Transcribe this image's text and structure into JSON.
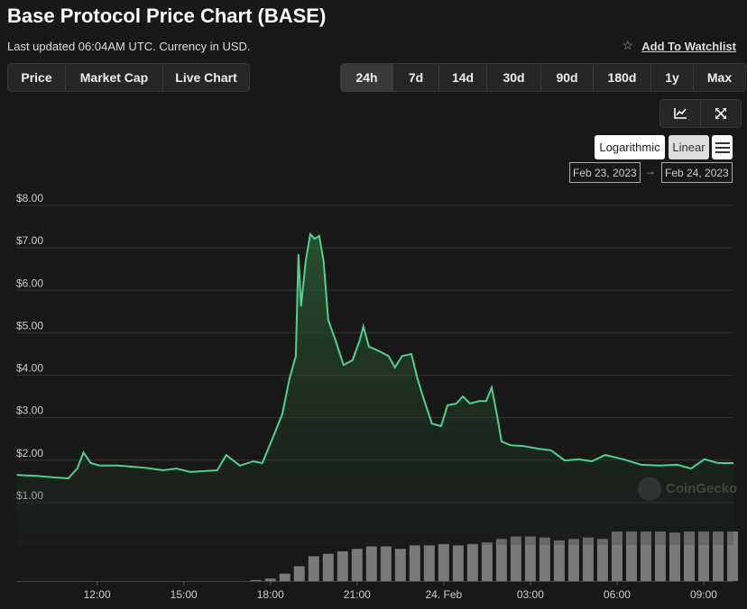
{
  "header": {
    "title": "Base Protocol Price Chart (BASE)",
    "subtitle": "Last updated 06:04AM UTC. Currency in USD.",
    "watchlist": "Add To Watchlist"
  },
  "tabs": [
    "Price",
    "Market Cap",
    "Live Chart"
  ],
  "ranges": [
    "24h",
    "7d",
    "14d",
    "30d",
    "90d",
    "180d",
    "1y",
    "Max"
  ],
  "scales": [
    "Logarithmic",
    "Linear"
  ],
  "date_range": {
    "from": "Feb 23, 2023",
    "arrow": "→",
    "to": "Feb 24, 2023"
  },
  "watermark": "CoinGecko",
  "chart_data": {
    "type": "line",
    "color": "#4fd18f",
    "x": [
      9.22,
      9.9,
      10.53,
      11.0,
      11.31,
      11.53,
      11.78,
      12.09,
      12.72,
      13.66,
      14.28,
      14.75,
      15.22,
      16.16,
      16.47,
      16.94,
      17.41,
      17.72,
      18.03,
      18.41,
      18.66,
      18.88,
      18.97,
      19.06,
      19.22,
      19.38,
      19.53,
      19.69,
      19.84,
      20.0,
      20.28,
      20.53,
      20.84,
      21.09,
      21.22,
      21.41,
      21.78,
      22.09,
      22.31,
      22.56,
      22.88,
      23.09,
      23.28,
      23.59,
      23.91,
      24.13,
      24.44,
      24.66,
      24.91,
      25.22,
      25.47,
      25.66,
      25.84,
      26.0,
      26.31,
      26.78,
      27.25,
      27.72,
      28.19,
      28.66,
      29.12,
      29.59,
      30.22,
      30.84,
      31.47,
      32.09,
      32.56,
      33.03,
      33.5,
      34.03
    ],
    "values": [
      1.65,
      1.63,
      1.59,
      1.57,
      1.8,
      2.18,
      1.93,
      1.87,
      1.87,
      1.82,
      1.76,
      1.8,
      1.72,
      1.76,
      2.12,
      1.87,
      1.97,
      1.93,
      2.44,
      3.08,
      3.92,
      4.45,
      6.85,
      5.62,
      6.68,
      7.32,
      7.21,
      7.28,
      6.68,
      5.3,
      4.77,
      4.24,
      4.35,
      4.82,
      5.15,
      4.67,
      4.56,
      4.45,
      4.18,
      4.45,
      4.5,
      3.92,
      3.5,
      2.86,
      2.8,
      3.29,
      3.33,
      3.5,
      3.33,
      3.39,
      3.39,
      3.71,
      3.08,
      2.44,
      2.35,
      2.33,
      2.27,
      2.23,
      1.99,
      2.02,
      1.97,
      2.12,
      2.02,
      1.89,
      1.87,
      1.89,
      1.8,
      2.02,
      1.93,
      1.93
    ],
    "xlim": [
      9.2,
      34.0
    ],
    "xticks": [
      {
        "value": 12,
        "label": "12:00"
      },
      {
        "value": 15,
        "label": "15:00"
      },
      {
        "value": 18,
        "label": "18:00"
      },
      {
        "value": 21,
        "label": "21:00"
      },
      {
        "value": 24,
        "label": "24. Feb"
      },
      {
        "value": 27,
        "label": "03:00"
      },
      {
        "value": 30,
        "label": "06:00"
      },
      {
        "value": 33,
        "label": "09:00"
      }
    ],
    "ylim": [
      0,
      8.4
    ],
    "yticks": [
      {
        "value": 1,
        "label": "$1.00"
      },
      {
        "value": 2,
        "label": "$2.00"
      },
      {
        "value": 3,
        "label": "$3.00"
      },
      {
        "value": 4,
        "label": "$4.00"
      },
      {
        "value": 5,
        "label": "$5.00"
      },
      {
        "value": 6,
        "label": "$6.00"
      },
      {
        "value": 7,
        "label": "$7.00"
      },
      {
        "value": 8,
        "label": "$8.00"
      }
    ],
    "grid": true,
    "volume": {
      "color": "#7a7a7a",
      "y2lim": [
        0,
        100
      ],
      "x": [
        17.5,
        18,
        18.5,
        19,
        19.5,
        20,
        20.5,
        21,
        21.5,
        22,
        22.5,
        23,
        23.5,
        24,
        24.5,
        25,
        25.5,
        26,
        26.5,
        27,
        27.5,
        28,
        28.5,
        29,
        29.5,
        30,
        30.5,
        31,
        31.5,
        32,
        32.5,
        33,
        33.5,
        34
      ],
      "values": [
        2,
        5,
        15,
        30,
        50,
        55,
        60,
        65,
        70,
        70,
        65,
        72,
        72,
        75,
        72,
        75,
        78,
        85,
        90,
        90,
        88,
        82,
        85,
        88,
        85,
        100,
        100,
        100,
        100,
        98,
        100,
        100,
        100,
        100
      ]
    }
  }
}
